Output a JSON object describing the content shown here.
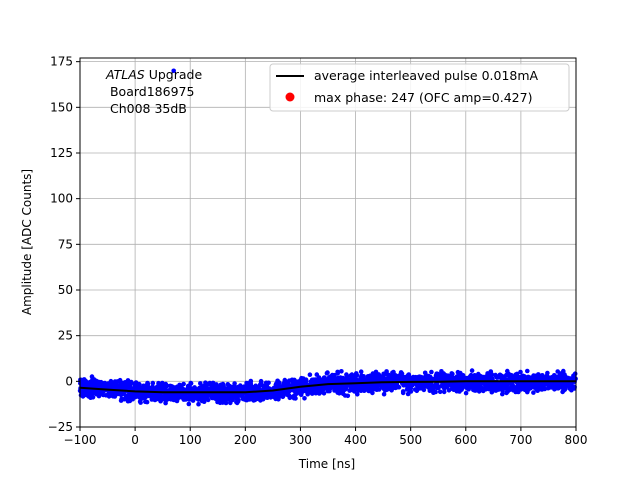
{
  "chart_data": {
    "type": "scatter",
    "xlabel": "Time [ns]",
    "ylabel": "Amplitude [ADC Counts]",
    "xlim": [
      -100,
      800
    ],
    "ylim": [
      -25,
      177
    ],
    "x_ticks": [
      -100,
      0,
      100,
      200,
      300,
      400,
      500,
      600,
      700,
      800
    ],
    "y_ticks": [
      -25,
      0,
      25,
      50,
      75,
      100,
      125,
      150,
      175
    ],
    "grid": true,
    "legend_position": "top-right",
    "annotation": {
      "line1_italic": "ATLAS",
      "line1_rest": " Upgrade",
      "line2": " Board186975",
      "line3": " Ch008 35dB"
    },
    "series": [
      {
        "name": "average interleaved pulse 0.018mA",
        "kind": "line",
        "color": "#000000",
        "x": [
          -100,
          -50,
          0,
          50,
          100,
          150,
          200,
          250,
          300,
          350,
          400,
          450,
          500,
          550,
          600,
          650,
          700,
          750,
          800
        ],
        "y": [
          -3.5,
          -4.5,
          -5.5,
          -6.0,
          -6.0,
          -6.0,
          -6.0,
          -5.0,
          -3.0,
          -1.5,
          -1.0,
          -0.5,
          -0.3,
          -0.2,
          0.0,
          0.0,
          0.0,
          0.0,
          0.0
        ]
      },
      {
        "name": "",
        "kind": "scatter-band",
        "color": "#0000ff",
        "x": [
          -100,
          -50,
          0,
          50,
          100,
          150,
          200,
          250,
          300,
          350,
          400,
          450,
          500,
          550,
          600,
          650,
          700,
          750,
          800
        ],
        "y_low": [
          -11,
          -12,
          -13,
          -14,
          -14,
          -14,
          -14,
          -13,
          -11,
          -9,
          -9,
          -8,
          -8,
          -8,
          -8,
          -8,
          -8,
          -8,
          -8
        ],
        "y_high": [
          5,
          3,
          2,
          1,
          1,
          1,
          1,
          2,
          4,
          6,
          7,
          7,
          7,
          7,
          8,
          7,
          7,
          7,
          7
        ]
      },
      {
        "name": "max phase: 247 (OFC amp=0.427)",
        "kind": "marker",
        "color": "#ff0000",
        "x": [],
        "y": []
      }
    ],
    "outlier_point": {
      "x": 70,
      "y": 170,
      "color": "#0000ff"
    }
  }
}
